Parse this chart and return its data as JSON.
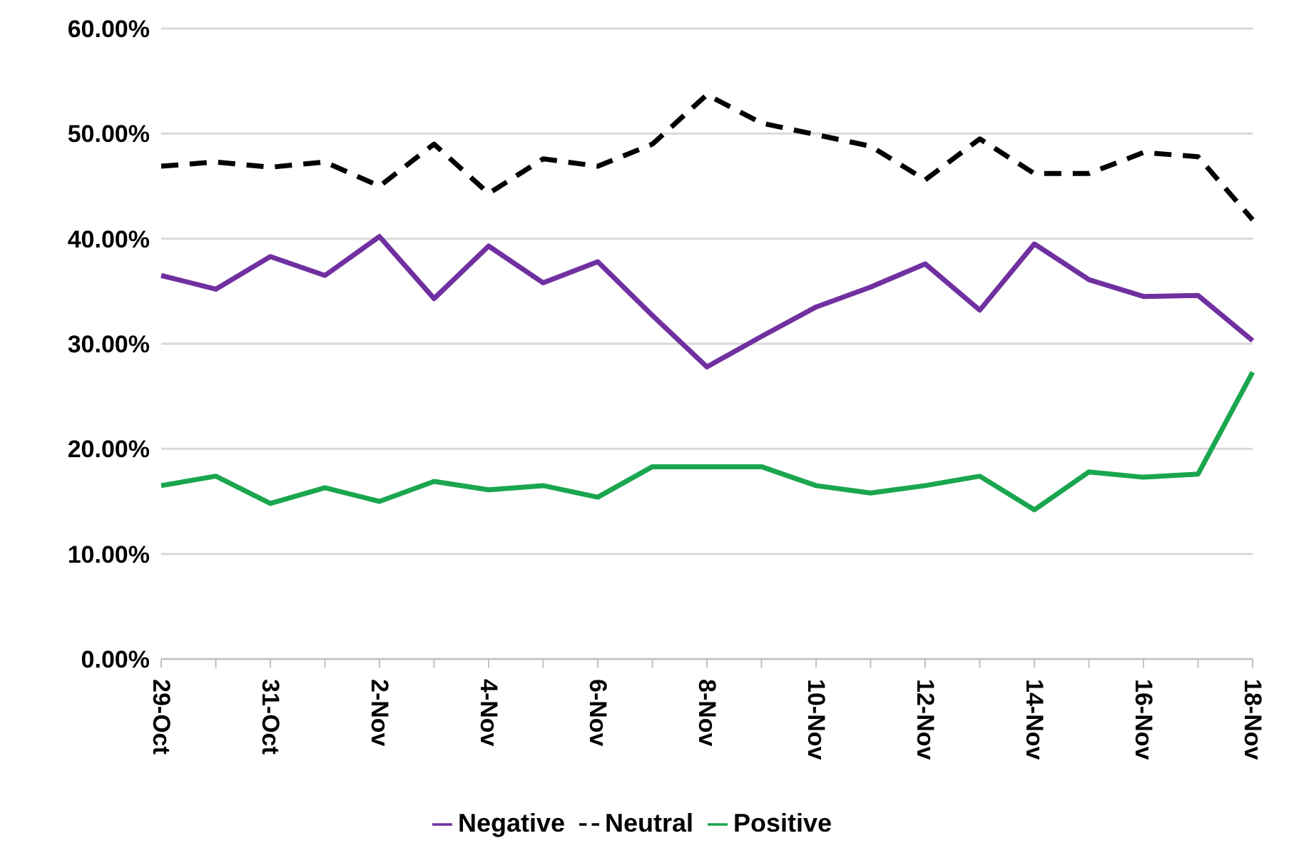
{
  "chart_data": {
    "type": "line",
    "categories": [
      "29-Oct",
      null,
      "31-Oct",
      null,
      "2-Nov",
      null,
      "4-Nov",
      null,
      "6-Nov",
      null,
      "8-Nov",
      null,
      "10-Nov",
      null,
      "12-Nov",
      null,
      "14-Nov",
      null,
      "16-Nov",
      null,
      "18-Nov"
    ],
    "series": [
      {
        "name": "Positive",
        "color": "#1aa64f",
        "values": [
          16.5,
          17.4,
          14.8,
          16.3,
          15.0,
          16.9,
          16.1,
          16.5,
          15.4,
          18.3,
          18.3,
          18.3,
          16.5,
          15.8,
          16.5,
          17.4,
          14.2,
          17.8,
          17.3,
          17.6,
          27.3
        ]
      },
      {
        "name": "Negative",
        "color": "#7030a0",
        "values": [
          36.5,
          35.2,
          38.3,
          36.5,
          40.2,
          34.3,
          39.3,
          35.8,
          37.8,
          32.7,
          27.8,
          30.7,
          33.5,
          35.4,
          37.6,
          33.2,
          39.5,
          36.1,
          34.5,
          34.6,
          30.3
        ]
      },
      {
        "name": "Neutral",
        "color": "#000000",
        "line_style": "dashed",
        "values": [
          46.9,
          47.3,
          46.8,
          47.3,
          45.0,
          49.0,
          44.3,
          47.6,
          46.9,
          49.0,
          53.7,
          51.0,
          49.9,
          48.8,
          45.6,
          49.5,
          46.2,
          46.2,
          48.2,
          47.8,
          41.8
        ]
      }
    ],
    "ylim": [
      0,
      60
    ],
    "yticks": [
      {
        "value": 0,
        "label": "0.00%"
      },
      {
        "value": 10,
        "label": "10.00%"
      },
      {
        "value": 20,
        "label": "20.00%"
      },
      {
        "value": 30,
        "label": "30.00%"
      },
      {
        "value": 40,
        "label": "40.00%"
      },
      {
        "value": 50,
        "label": "50.00%"
      },
      {
        "value": 60,
        "label": "60.00%"
      }
    ],
    "grid": "y",
    "legend": "bottom",
    "marker": "none"
  }
}
